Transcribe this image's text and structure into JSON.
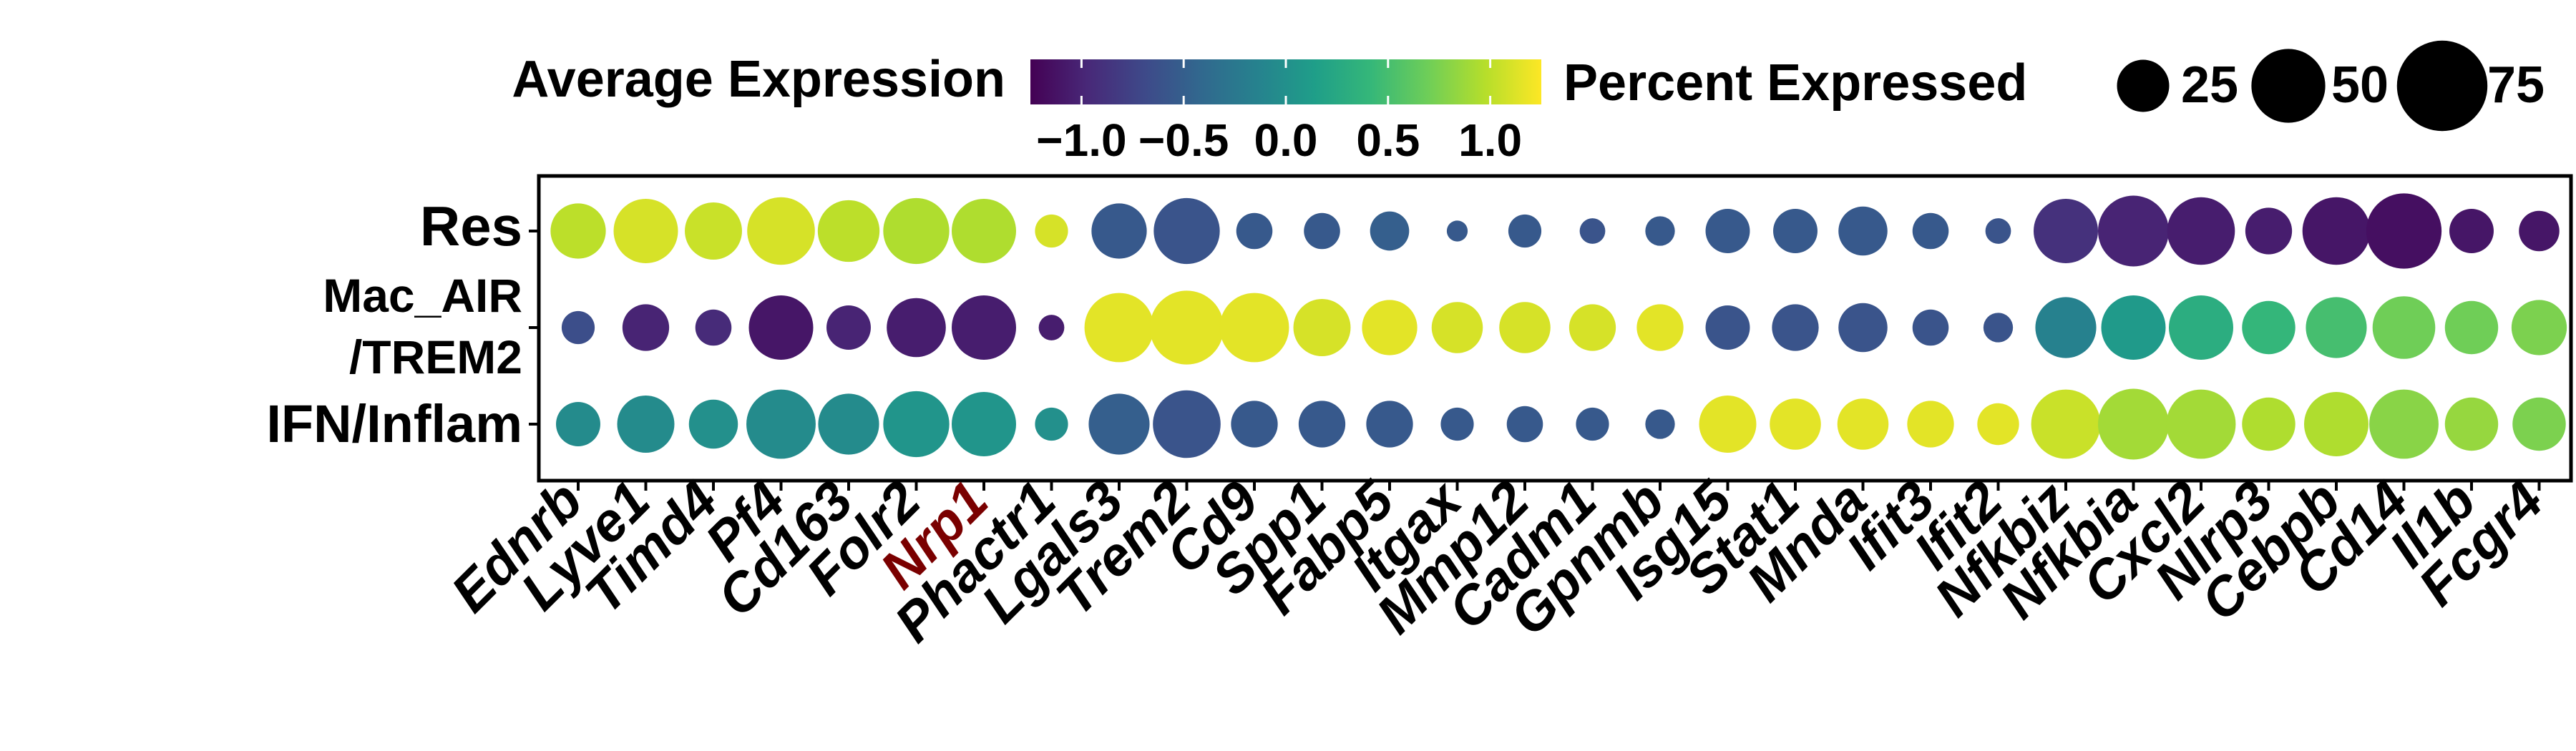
{
  "chart_data": {
    "type": "dotplot",
    "genes": [
      "Ednrb",
      "Lyve1",
      "Timd4",
      "Pf4",
      "Cd163",
      "Folr2",
      "Nrp1",
      "Phactr1",
      "Lgals3",
      "Trem2",
      "Cd9",
      "Spp1",
      "Fabp5",
      "Itgax",
      "Mmp12",
      "Cadm1",
      "Gpnmb",
      "Isg15",
      "Stat1",
      "Mnda",
      "Ifit3",
      "Ifit2",
      "Nfkbiz",
      "Nfkbia",
      "Cxcl2",
      "Nlrp3",
      "Cebpb",
      "Cd14",
      "Il1b",
      "Fcgr4"
    ],
    "highlighted_gene": "Nrp1",
    "highlight_color": "#7a0000",
    "groups": [
      {
        "label_lines": [
          "Res"
        ]
      },
      {
        "label_lines": [
          "Mac_AIR",
          "/TREM2"
        ]
      },
      {
        "label_lines": [
          "IFN/Inflam"
        ]
      }
    ],
    "avg_expression": [
      [
        1.0,
        1.1,
        1.05,
        1.1,
        1.0,
        0.95,
        0.95,
        1.1,
        -0.55,
        -0.6,
        -0.55,
        -0.55,
        -0.5,
        -0.55,
        -0.55,
        -0.6,
        -0.55,
        -0.55,
        -0.55,
        -0.55,
        -0.55,
        -0.6,
        -0.9,
        -1.0,
        -1.05,
        -1.05,
        -1.1,
        -1.15,
        -1.1,
        -1.1
      ],
      [
        -0.65,
        -1.0,
        -0.95,
        -1.1,
        -1.0,
        -1.05,
        -1.05,
        -1.05,
        1.15,
        1.15,
        1.15,
        1.1,
        1.15,
        1.1,
        1.1,
        1.1,
        1.15,
        -0.6,
        -0.6,
        -0.6,
        -0.6,
        -0.6,
        -0.15,
        0.1,
        0.3,
        0.4,
        0.5,
        0.7,
        0.7,
        0.75
      ],
      [
        -0.05,
        -0.05,
        0.0,
        -0.05,
        -0.05,
        0.05,
        0.05,
        0.0,
        -0.5,
        -0.6,
        -0.55,
        -0.55,
        -0.55,
        -0.55,
        -0.55,
        -0.55,
        -0.55,
        1.15,
        1.15,
        1.15,
        1.15,
        1.15,
        1.05,
        0.9,
        0.9,
        0.95,
        0.95,
        0.8,
        0.85,
        0.75
      ]
    ],
    "pct_expressed": [
      [
        28,
        38,
        30,
        42,
        35,
        40,
        38,
        10,
        28,
        40,
        12,
        12,
        14,
        4,
        10,
        6,
        8,
        18,
        18,
        22,
        12,
        6,
        38,
        46,
        42,
        20,
        42,
        52,
        18,
        15
      ],
      [
        10,
        20,
        12,
        38,
        18,
        32,
        38,
        6,
        44,
        50,
        44,
        30,
        28,
        24,
        24,
        20,
        20,
        18,
        20,
        22,
        12,
        8,
        34,
        38,
        38,
        26,
        34,
        36,
        26,
        28
      ],
      [
        18,
        30,
        22,
        44,
        34,
        40,
        38,
        10,
        34,
        42,
        20,
        20,
        20,
        10,
        12,
        10,
        8,
        30,
        24,
        24,
        20,
        16,
        44,
        46,
        44,
        26,
        38,
        44,
        26,
        26
      ]
    ],
    "color_scale": {
      "title": "Average Expression",
      "min": -1.25,
      "max": 1.25,
      "ticks": [
        -1.0,
        -0.5,
        0.0,
        0.5,
        1.0
      ],
      "tick_labels": [
        "−1.0",
        "−0.5",
        "0.0",
        "0.5",
        "1.0"
      ],
      "colormap": "viridis",
      "stops": [
        "#440154",
        "#482878",
        "#3e4989",
        "#31688e",
        "#26828e",
        "#1f9e89",
        "#35b779",
        "#6ece58",
        "#b5de2b",
        "#fde725"
      ]
    },
    "size_legend": {
      "title": "Percent Expressed",
      "values": [
        25,
        50,
        75
      ],
      "labels": [
        "25",
        "50",
        "75"
      ]
    }
  }
}
